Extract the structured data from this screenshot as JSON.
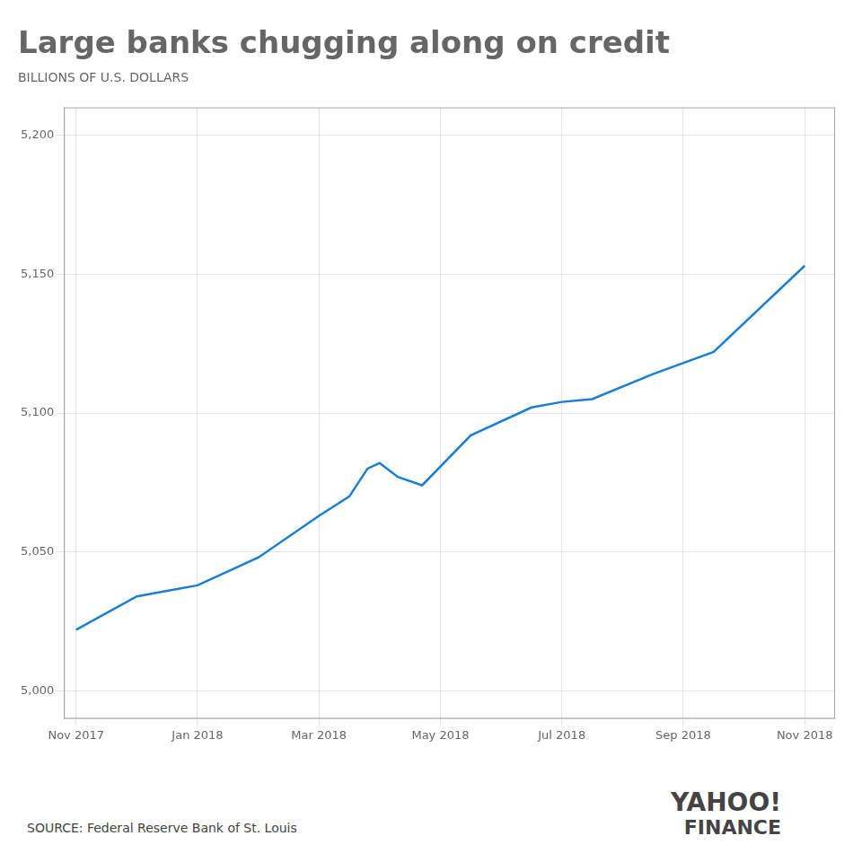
{
  "chart_data": {
    "type": "line",
    "title": "Large banks chugging along on credit",
    "subtitle": "BILLIONS OF U.S. DOLLARS",
    "annotations": [
      "SOURCE: Federal Reserve Bank of St. Louis",
      "YAHOO!",
      "FINANCE"
    ],
    "x": [
      0,
      1,
      1.5,
      2,
      3,
      4,
      4.5,
      4.8,
      5,
      5.3,
      5.7,
      6.5,
      7.5,
      8,
      8.5,
      9.5,
      10.5,
      12
    ],
    "values": [
      5022,
      5034,
      5036,
      5038,
      5048,
      5063,
      5070,
      5080,
      5082,
      5077,
      5074,
      5092,
      5102,
      5104,
      5105,
      5114,
      5122,
      5153
    ],
    "color": "#1a7fd4",
    "xlim": [
      -0.2,
      12.5
    ],
    "xticks": [
      {
        "value": 0,
        "label": "Nov 2017"
      },
      {
        "value": 2,
        "label": "Jan 2018"
      },
      {
        "value": 4,
        "label": "Mar 2018"
      },
      {
        "value": 6,
        "label": "May 2018"
      },
      {
        "value": 8,
        "label": "Jul 2018"
      },
      {
        "value": 10,
        "label": "Sep 2018"
      },
      {
        "value": 12,
        "label": "Nov 2018"
      }
    ],
    "ylim": [
      4990,
      5210
    ],
    "yticks": [
      {
        "value": 5000,
        "label": "5,000"
      },
      {
        "value": 5050,
        "label": "5,050"
      },
      {
        "value": 5100,
        "label": "5,100"
      },
      {
        "value": 5150,
        "label": "5,150"
      },
      {
        "value": 5200,
        "label": "5,200"
      }
    ],
    "grid": true
  }
}
